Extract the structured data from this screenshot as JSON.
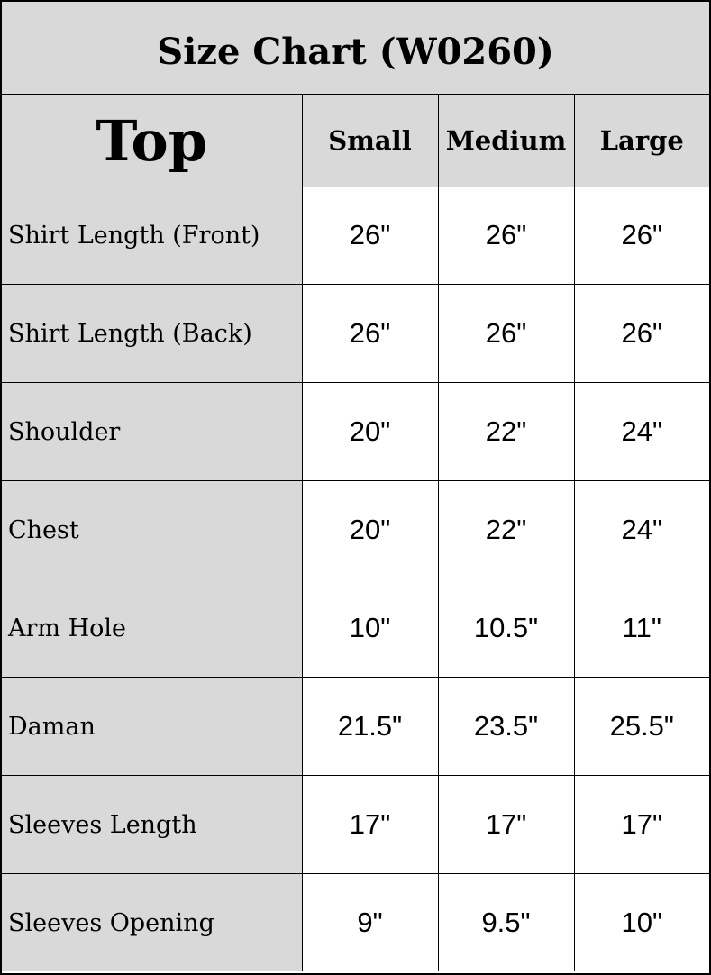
{
  "title": "Size Chart (W0260)",
  "header": {
    "section": "Top",
    "sizes": [
      "Small",
      "Medium",
      "Large"
    ]
  },
  "rows": [
    {
      "label": "Shirt Length (Front)",
      "values": [
        "26\"",
        "26\"",
        "26\""
      ]
    },
    {
      "label": "Shirt Length (Back)",
      "values": [
        "26\"",
        "26\"",
        "26\""
      ]
    },
    {
      "label": "Shoulder",
      "values": [
        "20\"",
        "22\"",
        "24\""
      ]
    },
    {
      "label": "Chest",
      "values": [
        "20\"",
        "22\"",
        "24\""
      ]
    },
    {
      "label": "Arm Hole",
      "values": [
        "10\"",
        "10.5\"",
        "11\""
      ]
    },
    {
      "label": "Daman",
      "values": [
        "21.5\"",
        "23.5\"",
        "25.5\""
      ]
    },
    {
      "label": "Sleeves Length",
      "values": [
        "17\"",
        "17\"",
        "17\""
      ]
    },
    {
      "label": "Sleeves Opening",
      "values": [
        "9\"",
        "9.5\"",
        "10\""
      ]
    }
  ],
  "colors": {
    "header_bg": "#d9d9d9",
    "cell_bg": "#ffffff",
    "border": "#000000"
  }
}
